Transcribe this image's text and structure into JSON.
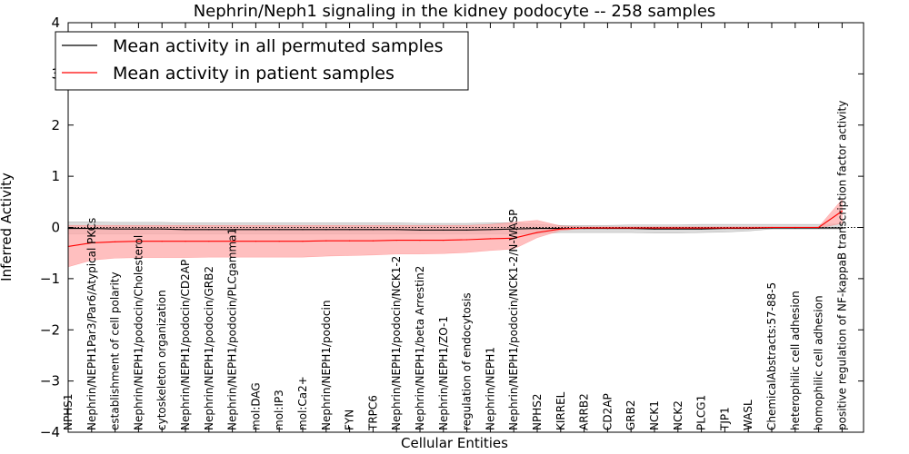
{
  "chart_data": {
    "type": "line",
    "title": "Nephrin/Neph1 signaling in the kidney podocyte -- 258 samples",
    "xlabel": "Cellular Entities",
    "ylabel": "Inferred Activity",
    "ylim": [
      -4,
      4
    ],
    "yticks": [
      -4,
      -3,
      -2,
      -1,
      0,
      1,
      2,
      3,
      4
    ],
    "ytick_labels": [
      "−4",
      "−3",
      "−2",
      "−1",
      "0",
      "1",
      "2",
      "3",
      "4"
    ],
    "legend_position": "top-left",
    "categories": [
      "NPHS1",
      "Nephrin/NEPH1Par3/Par6/Atypical PKCs",
      "establishment of cell polarity",
      "Nephrin/NEPH1/podocin/Cholesterol",
      "cytoskeleton organization",
      "Nephrin/NEPH1/podocin/CD2AP",
      "Nephrin/NEPH1/podocin/GRB2",
      "Nephrin/NEPH1/podocin/PLCgamma1",
      "mol:DAG",
      "mol:IP3",
      "mol:Ca2+",
      "Nephrin/NEPH1/podocin",
      "FYN",
      "TRPC6",
      "Nephrin/NEPH1/podocin/NCK1-2",
      "Nephrin/NEPH1/beta Arrestin2",
      "Nephrin/NEPH1/ZO-1",
      "regulation of endocytosis",
      "Nephrin/NEPH1",
      "Nephrin/NEPH1/podocin/NCK1-2/N-WASP",
      "NPHS2",
      "KIRREL",
      "ARRB2",
      "CD2AP",
      "GRB2",
      "NCK1",
      "NCK2",
      "PLCG1",
      "TJP1",
      "WASL",
      "ChemicalAbstracts:57-88-5",
      "heterophilic cell adhesion",
      "homophilic cell adhesion",
      "positive regulation of NF-kappaB transcription factor activity"
    ],
    "series": [
      {
        "name": "Mean activity in all permuted samples",
        "color": "#000000",
        "band_color": "#bfbfbf",
        "values": [
          -0.02,
          -0.02,
          -0.03,
          -0.03,
          -0.03,
          -0.04,
          -0.04,
          -0.04,
          -0.04,
          -0.04,
          -0.04,
          -0.04,
          -0.04,
          -0.04,
          -0.04,
          -0.05,
          -0.05,
          -0.05,
          -0.04,
          -0.03,
          -0.02,
          -0.02,
          -0.02,
          -0.02,
          -0.02,
          -0.03,
          -0.03,
          -0.03,
          -0.02,
          -0.02,
          -0.01,
          -0.01,
          -0.01,
          -0.01
        ],
        "lower": [
          -0.13,
          -0.13,
          -0.13,
          -0.13,
          -0.13,
          -0.13,
          -0.13,
          -0.13,
          -0.13,
          -0.13,
          -0.13,
          -0.13,
          -0.13,
          -0.13,
          -0.13,
          -0.13,
          -0.13,
          -0.13,
          -0.13,
          -0.13,
          -0.12,
          -0.1,
          -0.1,
          -0.1,
          -0.1,
          -0.11,
          -0.11,
          -0.1,
          -0.09,
          -0.07,
          -0.03,
          -0.03,
          -0.03,
          -0.03
        ],
        "upper": [
          0.11,
          0.11,
          0.1,
          0.1,
          0.1,
          0.09,
          0.09,
          0.09,
          0.09,
          0.09,
          0.09,
          0.09,
          0.09,
          0.09,
          0.09,
          0.08,
          0.08,
          0.08,
          0.09,
          0.09,
          0.06,
          0.04,
          0.04,
          0.04,
          0.05,
          0.05,
          0.05,
          0.06,
          0.06,
          0.06,
          0.06,
          0.06,
          0.06,
          0.07
        ]
      },
      {
        "name": "Mean activity in patient samples",
        "color": "#ff0000",
        "band_color": "#ffaaaa",
        "values": [
          -0.37,
          -0.3,
          -0.28,
          -0.27,
          -0.27,
          -0.27,
          -0.27,
          -0.27,
          -0.27,
          -0.27,
          -0.27,
          -0.26,
          -0.26,
          -0.26,
          -0.25,
          -0.25,
          -0.25,
          -0.24,
          -0.22,
          -0.21,
          -0.1,
          -0.03,
          -0.01,
          -0.01,
          -0.01,
          -0.01,
          -0.01,
          -0.01,
          -0.01,
          -0.01,
          0.0,
          0.0,
          0.0,
          0.32
        ],
        "lower": [
          -0.77,
          -0.64,
          -0.6,
          -0.59,
          -0.59,
          -0.59,
          -0.58,
          -0.58,
          -0.58,
          -0.58,
          -0.58,
          -0.56,
          -0.55,
          -0.54,
          -0.52,
          -0.52,
          -0.51,
          -0.49,
          -0.45,
          -0.42,
          -0.2,
          -0.06,
          -0.02,
          -0.02,
          -0.02,
          -0.02,
          -0.02,
          -0.02,
          -0.02,
          -0.02,
          -0.01,
          -0.01,
          -0.01,
          0.08
        ],
        "upper": [
          0.04,
          0.04,
          0.04,
          0.04,
          0.04,
          0.04,
          0.04,
          0.04,
          0.04,
          0.04,
          0.04,
          0.04,
          0.04,
          0.04,
          0.04,
          0.04,
          0.04,
          0.04,
          0.06,
          0.1,
          0.14,
          0.03,
          0.01,
          0.01,
          0.01,
          0.01,
          0.01,
          0.01,
          0.01,
          0.01,
          0.01,
          0.01,
          0.01,
          0.55
        ]
      }
    ],
    "reference_line": {
      "y": 0,
      "style": "dotted"
    }
  }
}
